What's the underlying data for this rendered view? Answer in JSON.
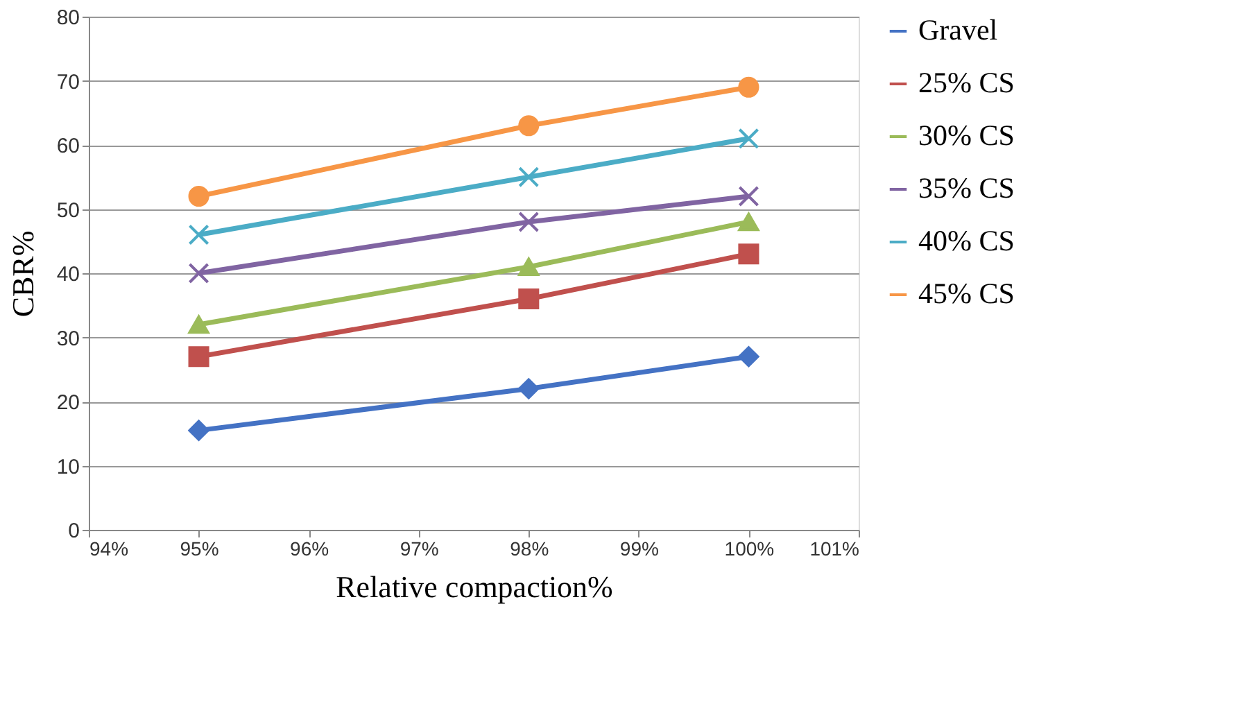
{
  "chart_data": {
    "type": "line",
    "xlabel": "Relative compaction%",
    "ylabel": "CBR%",
    "x": [
      95,
      98,
      100
    ],
    "series": [
      {
        "name": "Gravel",
        "color": "#4472c4",
        "marker": "diamond",
        "values": [
          15.5,
          22,
          27
        ]
      },
      {
        "name": "25% CS",
        "color": "#c0504d",
        "marker": "square",
        "values": [
          27,
          36,
          43
        ]
      },
      {
        "name": "30% CS",
        "color": "#9bbb59",
        "marker": "triangle",
        "values": [
          32,
          41,
          48
        ]
      },
      {
        "name": "35% CS",
        "color": "#8064a2",
        "marker": "cross",
        "values": [
          40,
          48,
          52
        ]
      },
      {
        "name": "40% CS",
        "color": "#4bacc6",
        "marker": "cross",
        "values": [
          46,
          55,
          61
        ]
      },
      {
        "name": "45% CS",
        "color": "#f79646",
        "marker": "circle",
        "values": [
          52,
          63,
          69
        ]
      }
    ],
    "xlim": [
      94,
      101
    ],
    "xticks": [
      {
        "value": 94,
        "label": "94%"
      },
      {
        "value": 95,
        "label": "95%"
      },
      {
        "value": 96,
        "label": "96%"
      },
      {
        "value": 97,
        "label": "97%"
      },
      {
        "value": 98,
        "label": "98%"
      },
      {
        "value": 99,
        "label": "99%"
      },
      {
        "value": 100,
        "label": "100%"
      },
      {
        "value": 101,
        "label": "101%"
      }
    ],
    "ylim": [
      0,
      80
    ],
    "yticks": [
      0,
      10,
      20,
      30,
      40,
      50,
      60,
      70,
      80
    ],
    "grid": "y",
    "legend": "right",
    "line_style": "solid"
  }
}
